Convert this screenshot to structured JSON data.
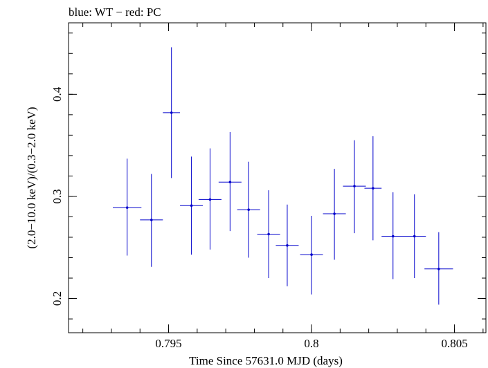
{
  "chart_data": {
    "type": "scatter",
    "title": "blue: WT − red: PC",
    "xlabel": "Time Since 57631.0 MJD (days)",
    "ylabel": "(2.0−10.0 keV)/(0.3−2.0 keV)",
    "xlim": [
      0.7915,
      0.8061
    ],
    "ylim": [
      0.1665,
      0.47
    ],
    "x_ticks": [
      {
        "value": 0.795,
        "label": "0.795"
      },
      {
        "value": 0.8,
        "label": "0.8"
      },
      {
        "value": 0.805,
        "label": "0.805"
      }
    ],
    "y_ticks": [
      {
        "value": 0.2,
        "label": "0.2"
      },
      {
        "value": 0.3,
        "label": "0.3"
      },
      {
        "value": 0.4,
        "label": "0.4"
      }
    ],
    "x_minor_step": 0.001,
    "y_minor_step": 0.02,
    "series": [
      {
        "color": "#0000cc",
        "points": [
          {
            "x": 0.79355,
            "xerr": 0.0005,
            "y": 0.289,
            "yerr_low": 0.047,
            "yerr_high": 0.048
          },
          {
            "x": 0.7944,
            "xerr": 0.0004,
            "y": 0.277,
            "yerr_low": 0.046,
            "yerr_high": 0.045
          },
          {
            "x": 0.7951,
            "xerr": 0.0003,
            "y": 0.382,
            "yerr_low": 0.064,
            "yerr_high": 0.064
          },
          {
            "x": 0.7958,
            "xerr": 0.0004,
            "y": 0.291,
            "yerr_low": 0.048,
            "yerr_high": 0.048
          },
          {
            "x": 0.79645,
            "xerr": 0.0004,
            "y": 0.297,
            "yerr_low": 0.049,
            "yerr_high": 0.05
          },
          {
            "x": 0.79715,
            "xerr": 0.0004,
            "y": 0.314,
            "yerr_low": 0.048,
            "yerr_high": 0.049
          },
          {
            "x": 0.7978,
            "xerr": 0.0004,
            "y": 0.287,
            "yerr_low": 0.047,
            "yerr_high": 0.047
          },
          {
            "x": 0.7985,
            "xerr": 0.0004,
            "y": 0.263,
            "yerr_low": 0.043,
            "yerr_high": 0.043
          },
          {
            "x": 0.79915,
            "xerr": 0.0004,
            "y": 0.252,
            "yerr_low": 0.04,
            "yerr_high": 0.04
          },
          {
            "x": 0.8,
            "xerr": 0.0004,
            "y": 0.243,
            "yerr_low": 0.039,
            "yerr_high": 0.038
          },
          {
            "x": 0.8008,
            "xerr": 0.0004,
            "y": 0.283,
            "yerr_low": 0.045,
            "yerr_high": 0.044
          },
          {
            "x": 0.8015,
            "xerr": 0.0004,
            "y": 0.31,
            "yerr_low": 0.046,
            "yerr_high": 0.045
          },
          {
            "x": 0.80215,
            "xerr": 0.0003,
            "y": 0.308,
            "yerr_low": 0.051,
            "yerr_high": 0.051
          },
          {
            "x": 0.80285,
            "xerr": 0.0004,
            "y": 0.261,
            "yerr_low": 0.042,
            "yerr_high": 0.043
          },
          {
            "x": 0.8036,
            "xerr": 0.0004,
            "y": 0.261,
            "yerr_low": 0.041,
            "yerr_high": 0.041
          },
          {
            "x": 0.80445,
            "xerr": 0.0005,
            "y": 0.229,
            "yerr_low": 0.035,
            "yerr_high": 0.036
          }
        ]
      }
    ],
    "grid": false,
    "legend": "none"
  }
}
